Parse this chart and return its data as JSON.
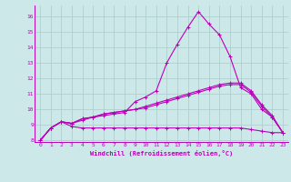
{
  "background_color": "#cce8e8",
  "grid_color": "#aacccc",
  "line_color": "#bb00bb",
  "xlabel": "Windchill (Refroidissement éolien,°C)",
  "xlim": [
    -0.5,
    23.5
  ],
  "ylim": [
    7.9,
    16.7
  ],
  "yticks": [
    8,
    9,
    10,
    11,
    12,
    13,
    14,
    15,
    16
  ],
  "xticks": [
    0,
    1,
    2,
    3,
    4,
    5,
    6,
    7,
    8,
    9,
    10,
    11,
    12,
    13,
    14,
    15,
    16,
    17,
    18,
    19,
    20,
    21,
    22,
    23
  ],
  "series": [
    [
      8.0,
      8.8,
      9.2,
      9.1,
      9.3,
      9.5,
      9.6,
      9.7,
      9.8,
      10.5,
      10.8,
      11.2,
      13.0,
      14.2,
      15.3,
      16.3,
      15.5,
      14.8,
      13.4,
      11.4,
      11.0,
      10.0,
      9.5,
      8.5
    ],
    [
      8.0,
      8.8,
      9.2,
      9.1,
      9.4,
      9.5,
      9.7,
      9.8,
      9.9,
      10.0,
      10.1,
      10.3,
      10.5,
      10.7,
      10.9,
      11.1,
      11.3,
      11.5,
      11.6,
      11.6,
      11.1,
      10.2,
      9.5,
      8.5
    ],
    [
      8.0,
      8.8,
      9.2,
      9.1,
      9.4,
      9.5,
      9.7,
      9.8,
      9.9,
      10.0,
      10.2,
      10.4,
      10.6,
      10.8,
      11.0,
      11.2,
      11.4,
      11.6,
      11.7,
      11.7,
      11.2,
      10.3,
      9.6,
      8.5
    ],
    [
      8.0,
      8.8,
      9.2,
      8.9,
      8.8,
      8.8,
      8.8,
      8.8,
      8.8,
      8.8,
      8.8,
      8.8,
      8.8,
      8.8,
      8.8,
      8.8,
      8.8,
      8.8,
      8.8,
      8.8,
      8.7,
      8.6,
      8.5,
      8.5
    ]
  ]
}
